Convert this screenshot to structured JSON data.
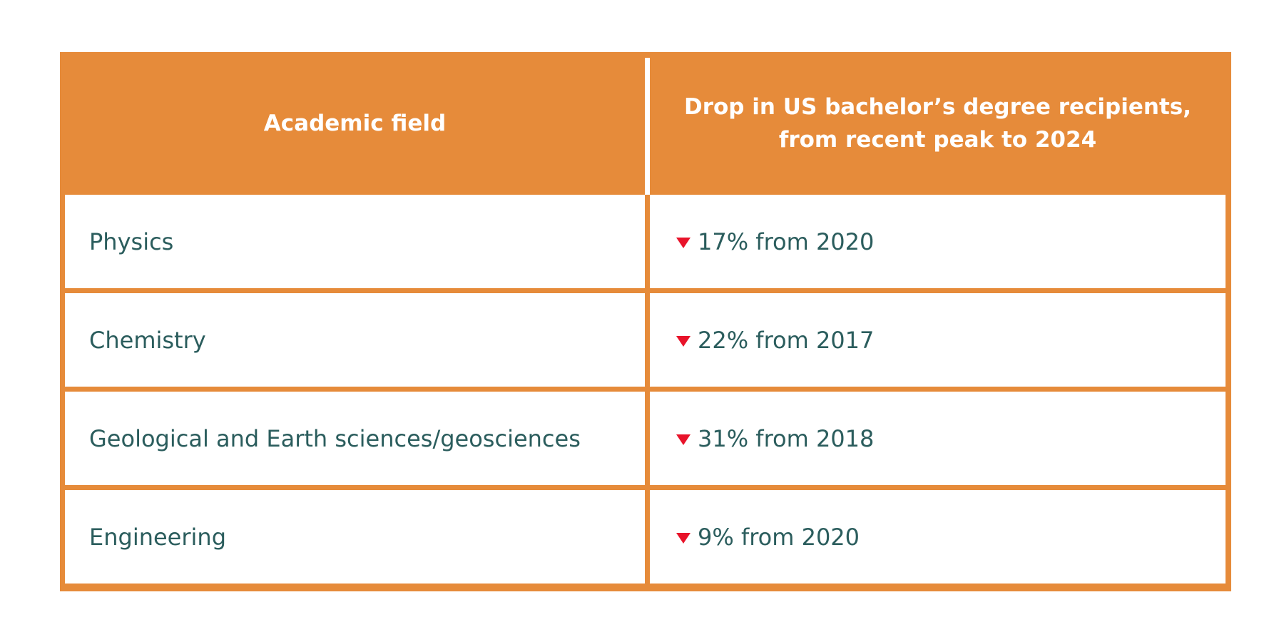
{
  "chart_data": {
    "type": "table",
    "columns": [
      "Academic field",
      "Drop in US bachelor’s degree recipients, from recent peak to 2024"
    ],
    "column_header_lines": [
      "Drop in US bachelor’s degree recipients,",
      "from recent peak to 2024"
    ],
    "rows": [
      {
        "field": "Physics",
        "drop": "17% from 2020",
        "drop_percent": 17,
        "peak_year": 2020
      },
      {
        "field": "Chemistry",
        "drop": "22% from 2017",
        "drop_percent": 22,
        "peak_year": 2017
      },
      {
        "field": "Geological and Earth sciences/geosciences",
        "drop": "31% from 2018",
        "drop_percent": 31,
        "peak_year": 2018
      },
      {
        "field": "Engineering",
        "drop": "9% from 2020",
        "drop_percent": 9,
        "peak_year": 2020
      }
    ],
    "colors": {
      "header_background": "#e68b3a",
      "header_text": "#ffffff",
      "body_text": "#2b5d5d",
      "decrease_arrow": "#e8132a",
      "border": "#e68b3a"
    },
    "icons": {
      "decrease": "down-triangle-icon"
    }
  }
}
